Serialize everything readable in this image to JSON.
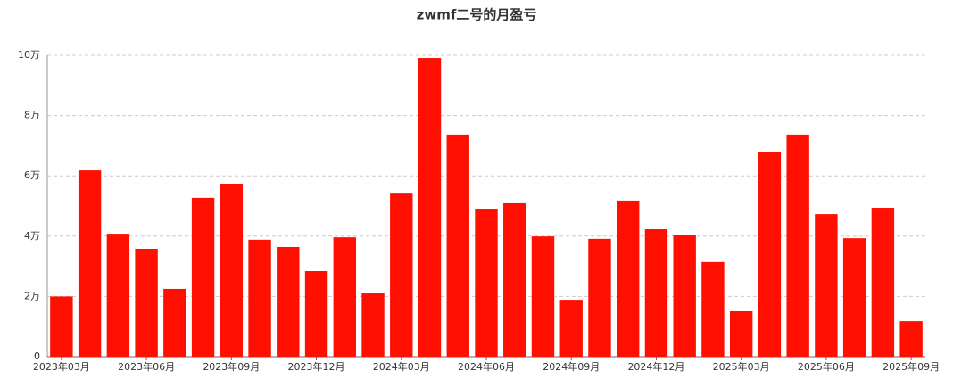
{
  "chart_data": {
    "type": "bar",
    "title": "zwmf二号的月盈亏",
    "categories": [
      "2023年03月",
      null,
      null,
      "2023年06月",
      null,
      null,
      "2023年09月",
      null,
      null,
      "2023年12月",
      null,
      null,
      "2024年03月",
      null,
      null,
      "2024年06月",
      null,
      null,
      "2024年09月",
      null,
      null,
      "2024年12月",
      null,
      null,
      "2025年03月",
      null,
      null,
      "2025年06月",
      null,
      null,
      "2025年09月"
    ],
    "values": [
      2.0,
      6.18,
      4.08,
      3.58,
      2.25,
      5.27,
      5.74,
      3.88,
      3.64,
      2.84,
      3.96,
      2.1,
      5.41,
      9.91,
      7.37,
      4.91,
      5.09,
      3.99,
      1.89,
      3.91,
      5.18,
      4.23,
      4.05,
      3.14,
      1.51,
      6.8,
      7.37,
      4.73,
      3.93,
      4.94,
      1.18
    ],
    "color": "#ff0f00",
    "ylim": [
      0,
      10
    ],
    "yticks": [
      0,
      {
        "value": 2,
        "label": "2万"
      },
      {
        "value": 4,
        "label": "4万"
      },
      {
        "value": 6,
        "label": "6万"
      },
      {
        "value": 8,
        "label": "8万"
      },
      {
        "value": 10,
        "label": "10万"
      }
    ],
    "grid": true
  }
}
